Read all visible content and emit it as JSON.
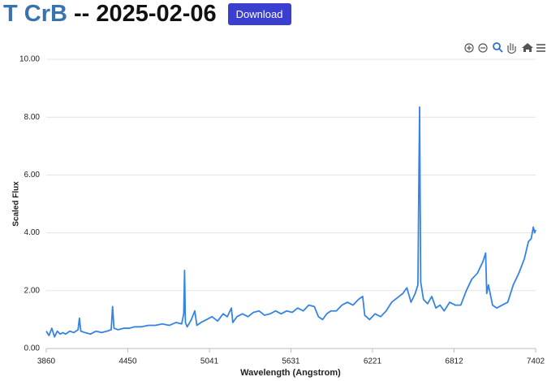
{
  "header": {
    "object": "T CrB",
    "date": "-- 2025-02-06",
    "button": "Download"
  },
  "chart_data": {
    "type": "line",
    "x_label": "Wavelength (Angstrom)",
    "y_label": "Scaled Flux",
    "xlim": [
      3860,
      7402
    ],
    "xticks": [
      3860,
      4450,
      5041,
      5631,
      6221,
      6812,
      7402
    ],
    "ylim": [
      0,
      10
    ],
    "yticks": [
      {
        "value": 0,
        "label": "0.00"
      },
      {
        "value": 2,
        "label": "2.00"
      },
      {
        "value": 4,
        "label": "4.00"
      },
      {
        "value": 6,
        "label": "6.00"
      },
      {
        "value": 8,
        "label": "8.00"
      },
      {
        "value": 10,
        "label": "10.00"
      }
    ],
    "grid": true,
    "series": [
      {
        "color": "#3584e4",
        "x": [
          3860,
          3880,
          3900,
          3920,
          3940,
          3960,
          3980,
          4000,
          4030,
          4060,
          4090,
          4100,
          4110,
          4140,
          4180,
          4220,
          4260,
          4300,
          4330,
          4340,
          4350,
          4380,
          4420,
          4460,
          4500,
          4550,
          4600,
          4650,
          4700,
          4750,
          4800,
          4840,
          4855,
          4861,
          4867,
          4880,
          4910,
          4935,
          4950,
          4980,
          5020,
          5060,
          5100,
          5140,
          5170,
          5200,
          5210,
          5240,
          5280,
          5320,
          5360,
          5400,
          5440,
          5480,
          5520,
          5560,
          5600,
          5640,
          5680,
          5720,
          5760,
          5800,
          5830,
          5860,
          5890,
          5920,
          5960,
          6000,
          6040,
          6080,
          6120,
          6150,
          6165,
          6200,
          6240,
          6280,
          6320,
          6360,
          6400,
          6440,
          6470,
          6500,
          6530,
          6550,
          6556,
          6562,
          6570,
          6590,
          6620,
          6650,
          6680,
          6710,
          6740,
          6780,
          6820,
          6860,
          6900,
          6940,
          6980,
          7020,
          7040,
          7048,
          7060,
          7090,
          7120,
          7160,
          7200,
          7240,
          7280,
          7320,
          7350,
          7370,
          7385,
          7395,
          7402
        ],
        "values": [
          0.6,
          0.45,
          0.7,
          0.4,
          0.6,
          0.5,
          0.55,
          0.5,
          0.6,
          0.55,
          0.65,
          1.05,
          0.6,
          0.55,
          0.5,
          0.6,
          0.55,
          0.6,
          0.65,
          1.45,
          0.7,
          0.65,
          0.7,
          0.7,
          0.75,
          0.75,
          0.8,
          0.8,
          0.85,
          0.8,
          0.9,
          0.85,
          1.2,
          2.7,
          0.9,
          0.75,
          1.0,
          1.3,
          0.8,
          0.9,
          1.0,
          1.1,
          0.95,
          1.2,
          1.1,
          1.4,
          0.9,
          1.1,
          1.2,
          1.1,
          1.25,
          1.3,
          1.15,
          1.2,
          1.3,
          1.2,
          1.3,
          1.25,
          1.4,
          1.3,
          1.5,
          1.45,
          1.1,
          1.0,
          1.2,
          1.3,
          1.3,
          1.5,
          1.6,
          1.5,
          1.7,
          1.8,
          1.15,
          1.0,
          1.2,
          1.1,
          1.3,
          1.6,
          1.75,
          1.9,
          2.1,
          1.6,
          1.9,
          2.2,
          5.5,
          8.35,
          2.3,
          1.7,
          1.55,
          1.8,
          1.4,
          1.5,
          1.3,
          1.6,
          1.5,
          1.5,
          2.0,
          2.4,
          2.6,
          3.0,
          3.3,
          1.9,
          2.2,
          1.5,
          1.4,
          1.5,
          1.6,
          2.2,
          2.6,
          3.1,
          3.7,
          3.8,
          4.2,
          4.0,
          4.1
        ]
      }
    ]
  }
}
